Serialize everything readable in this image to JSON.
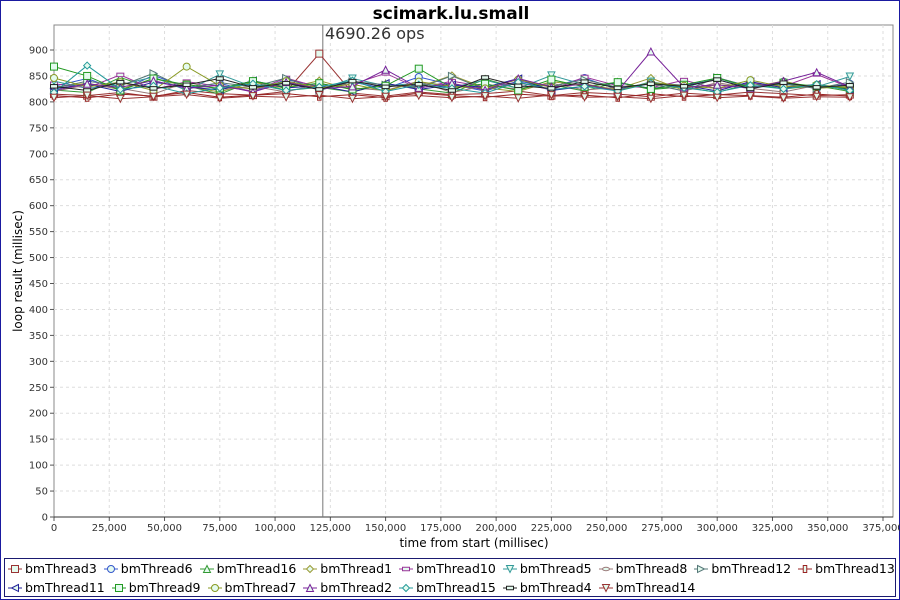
{
  "chart_data": {
    "type": "line",
    "title": "scimark.lu.small",
    "annotation": "4690.26 ops",
    "marker_line_x": 121600,
    "xlabel": "time from start (millisec)",
    "ylabel": "loop result (millisec)",
    "xlim": [
      0,
      375000
    ],
    "ylim": [
      0,
      900
    ],
    "xticks": [
      "0",
      "25,000",
      "50,000",
      "75,000",
      "100,000",
      "125,000",
      "150,000",
      "175,000",
      "200,000",
      "225,000",
      "250,000",
      "275,000",
      "300,000",
      "325,000",
      "350,000",
      "375,000"
    ],
    "yticks": [
      "0",
      "50",
      "100",
      "150",
      "200",
      "250",
      "300",
      "350",
      "400",
      "450",
      "500",
      "550",
      "600",
      "650",
      "700",
      "750",
      "800",
      "850",
      "900"
    ],
    "grid": true,
    "legend": "bottom",
    "marker_fill": "#e4fbef",
    "x": [
      0,
      15000,
      30000,
      45000,
      60000,
      75000,
      90000,
      105000,
      120000,
      135000,
      150000,
      165000,
      180000,
      195000,
      210000,
      225000,
      240000,
      255000,
      270000,
      285000,
      300000,
      315000,
      330000,
      345000,
      360000
    ],
    "series": [
      {
        "name": "bmThread3",
        "color": "#993333",
        "shape": "square",
        "values": [
          815,
          812,
          818,
          810,
          822,
          816,
          813,
          820,
          893,
          817,
          811,
          819,
          814,
          816,
          821,
          812,
          818,
          815,
          810,
          817,
          813,
          819,
          816,
          812,
          814
        ]
      },
      {
        "name": "bmThread6",
        "color": "#3355cc",
        "shape": "circle",
        "values": [
          830,
          845,
          822,
          851,
          828,
          836,
          819,
          843,
          830,
          838,
          826,
          848,
          833,
          821,
          840,
          829,
          846,
          824,
          837,
          832,
          843,
          827,
          839,
          825,
          835
        ]
      },
      {
        "name": "bmThread16",
        "color": "#339933",
        "shape": "triangle-up",
        "values": [
          823,
          818,
          847,
          826,
          831,
          815,
          840,
          822,
          828,
          819,
          835,
          825,
          817,
          844,
          826,
          833,
          821,
          838,
          824,
          829,
          818,
          836,
          825,
          831,
          820
        ]
      },
      {
        "name": "bmThread1",
        "color": "#999933",
        "shape": "diamond",
        "values": [
          828,
          836,
          824,
          845,
          830,
          819,
          838,
          826,
          841,
          823,
          834,
          829,
          851,
          827,
          820,
          839,
          831,
          825,
          846,
          822,
          833,
          828,
          840,
          826,
          830
        ]
      },
      {
        "name": "bmThread10",
        "color": "#993399",
        "shape": "rect-h",
        "values": [
          835,
          827,
          852,
          824,
          839,
          830,
          821,
          846,
          828,
          834,
          855,
          826,
          840,
          829,
          837,
          823,
          848,
          831,
          827,
          842,
          825,
          836,
          830,
          853,
          828
        ]
      },
      {
        "name": "bmThread5",
        "color": "#339999",
        "shape": "triangle-down",
        "values": [
          840,
          826,
          833,
          848,
          822,
          853,
          829,
          838,
          824,
          845,
          831,
          836,
          828,
          842,
          826,
          851,
          833,
          821,
          839,
          827,
          846,
          830,
          835,
          829,
          849
        ]
      },
      {
        "name": "bmThread8",
        "color": "#997777",
        "shape": "ellipse",
        "values": [
          820,
          833,
          826,
          815,
          838,
          824,
          830,
          819,
          835,
          827,
          822,
          840,
          818,
          831,
          825,
          836,
          823,
          828,
          834,
          821,
          837,
          826,
          819,
          832,
          824
        ]
      },
      {
        "name": "bmThread12",
        "color": "#557777",
        "shape": "triangle-right",
        "values": [
          826,
          840,
          831,
          855,
          825,
          837,
          829,
          846,
          822,
          839,
          833,
          827,
          850,
          824,
          836,
          830,
          843,
          828,
          835,
          821,
          847,
          829,
          834,
          826,
          838
        ]
      },
      {
        "name": "bmThread13",
        "color": "#992222",
        "shape": "rect-v",
        "values": [
          812,
          808,
          815,
          811,
          818,
          809,
          813,
          816,
          810,
          814,
          808,
          817,
          812,
          809,
          815,
          811,
          813,
          808,
          816,
          810,
          814,
          812,
          809,
          815,
          811
        ]
      },
      {
        "name": "bmThread11",
        "color": "#222299",
        "shape": "triangle-left",
        "values": [
          825,
          834,
          820,
          838,
          829,
          823,
          841,
          827,
          831,
          819,
          836,
          824,
          833,
          828,
          845,
          822,
          830,
          837,
          826,
          832,
          821,
          839,
          827,
          834,
          823
        ]
      },
      {
        "name": "bmThread9",
        "color": "#229922",
        "shape": "square",
        "values": [
          868,
          850,
          822,
          845,
          833,
          826,
          840,
          829,
          836,
          824,
          831,
          864,
          827,
          835,
          822,
          843,
          829,
          838,
          825,
          833,
          846,
          828,
          837,
          830,
          826
        ]
      },
      {
        "name": "bmThread7",
        "color": "#889922",
        "shape": "circle",
        "values": [
          846,
          829,
          838,
          822,
          868,
          831,
          825,
          840,
          827,
          834,
          821,
          839,
          830,
          826,
          843,
          828,
          835,
          822,
          837,
          831,
          826,
          842,
          829,
          833,
          827
        ]
      },
      {
        "name": "bmThread2",
        "color": "#772299",
        "shape": "triangle-up",
        "values": [
          822,
          835,
          828,
          841,
          826,
          832,
          819,
          838,
          825,
          830,
          862,
          827,
          836,
          823,
          845,
          829,
          834,
          821,
          897,
          828,
          833,
          826,
          840,
          857,
          829
        ]
      },
      {
        "name": "bmThread15",
        "color": "#229999",
        "shape": "diamond",
        "values": [
          818,
          870,
          824,
          831,
          816,
          827,
          835,
          822,
          829,
          841,
          820,
          833,
          826,
          817,
          838,
          824,
          830,
          821,
          836,
          827,
          819,
          832,
          825,
          834,
          822
        ]
      },
      {
        "name": "bmThread4",
        "color": "#222222",
        "shape": "rect-h",
        "values": [
          830,
          822,
          838,
          826,
          833,
          845,
          828,
          836,
          824,
          840,
          829,
          834,
          822,
          847,
          831,
          826,
          839,
          827,
          835,
          830,
          843,
          825,
          837,
          828,
          832
        ]
      },
      {
        "name": "bmThread14",
        "color": "#993333",
        "shape": "triangle-down",
        "values": [
          808,
          812,
          806,
          810,
          814,
          807,
          811,
          809,
          813,
          806,
          810,
          812,
          808,
          811,
          807,
          813,
          809,
          810,
          806,
          812,
          808,
          811,
          807,
          810,
          809
        ]
      }
    ]
  }
}
